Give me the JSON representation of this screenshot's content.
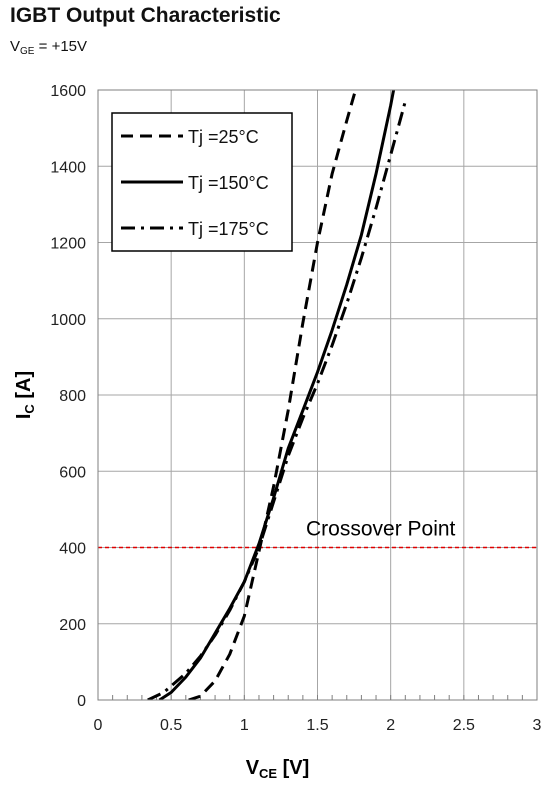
{
  "chart_data": {
    "type": "line",
    "title": "IGBT Output Characteristic",
    "subtitle": {
      "symbol": "V",
      "subscript": "GE",
      "text": " = +15V"
    },
    "xlabel": {
      "symbol": "V",
      "subscript": "CE",
      "unit": " [V]"
    },
    "ylabel": {
      "symbol": "I",
      "subscript": "C",
      "unit": " [A]"
    },
    "xlim": [
      0,
      3
    ],
    "ylim": [
      0,
      1600
    ],
    "x_ticks": [
      0,
      0.5,
      1,
      1.5,
      2,
      2.5,
      3
    ],
    "x_tick_labels": [
      "0",
      "0.5",
      "1",
      "1.5",
      "2",
      "2.5",
      "3"
    ],
    "y_ticks": [
      0,
      200,
      400,
      600,
      800,
      1000,
      1200,
      1400,
      1600
    ],
    "grid": true,
    "legend_position": "top-left",
    "series": [
      {
        "name": "Tj =25°C",
        "style": "dashed",
        "color": "#000000",
        "points": [
          [
            0.62,
            0
          ],
          [
            0.7,
            10
          ],
          [
            0.8,
            50
          ],
          [
            0.9,
            120
          ],
          [
            1.0,
            220
          ],
          [
            1.1,
            390
          ],
          [
            1.2,
            560
          ],
          [
            1.3,
            760
          ],
          [
            1.4,
            990
          ],
          [
            1.5,
            1200
          ],
          [
            1.6,
            1380
          ],
          [
            1.7,
            1520
          ],
          [
            1.76,
            1600
          ]
        ]
      },
      {
        "name": "Tj =150°C",
        "style": "solid",
        "color": "#000000",
        "points": [
          [
            0.42,
            0
          ],
          [
            0.5,
            20
          ],
          [
            0.6,
            60
          ],
          [
            0.7,
            110
          ],
          [
            0.8,
            175
          ],
          [
            0.9,
            240
          ],
          [
            1.0,
            310
          ],
          [
            1.1,
            410
          ],
          [
            1.2,
            530
          ],
          [
            1.3,
            660
          ],
          [
            1.4,
            760
          ],
          [
            1.5,
            860
          ],
          [
            1.6,
            970
          ],
          [
            1.7,
            1090
          ],
          [
            1.8,
            1220
          ],
          [
            1.9,
            1380
          ],
          [
            2.0,
            1560
          ],
          [
            2.02,
            1600
          ]
        ]
      },
      {
        "name": "Tj =175°C",
        "style": "dashdot",
        "color": "#000000",
        "points": [
          [
            0.34,
            0
          ],
          [
            0.45,
            20
          ],
          [
            0.6,
            70
          ],
          [
            0.7,
            115
          ],
          [
            0.8,
            170
          ],
          [
            0.9,
            235
          ],
          [
            1.0,
            310
          ],
          [
            1.1,
            400
          ],
          [
            1.2,
            520
          ],
          [
            1.3,
            640
          ],
          [
            1.4,
            740
          ],
          [
            1.5,
            830
          ],
          [
            1.6,
            930
          ],
          [
            1.7,
            1040
          ],
          [
            1.8,
            1160
          ],
          [
            1.9,
            1290
          ],
          [
            2.0,
            1430
          ],
          [
            2.1,
            1570
          ]
        ]
      }
    ],
    "annotations": [
      {
        "text": "Crossover Point",
        "y": 400,
        "line_color": "#e00000",
        "line_style": "dashed"
      }
    ]
  }
}
